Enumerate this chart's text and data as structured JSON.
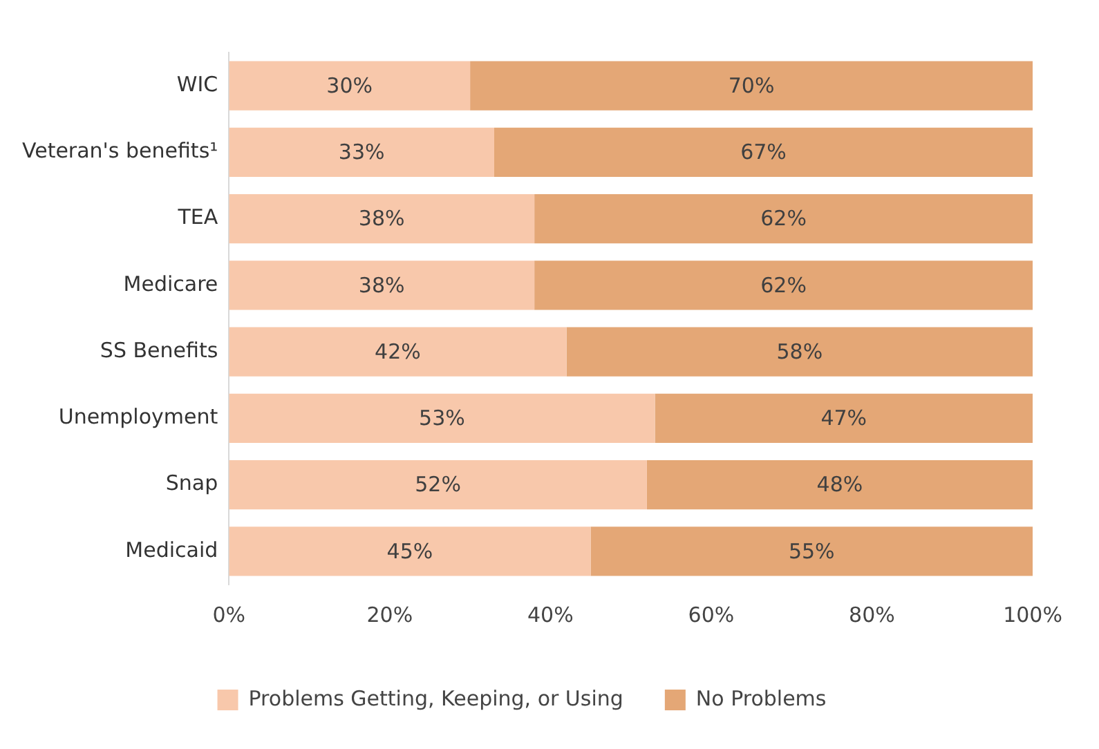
{
  "chart_data": {
    "type": "bar",
    "orientation": "horizontal",
    "stacked": true,
    "categories": [
      "WIC",
      "Veteran's benefits¹",
      "TEA",
      "Medicare",
      "SS Benefits",
      "Unemployment",
      "Snap",
      "Medicaid"
    ],
    "series": [
      {
        "name": "Problems Getting, Keeping, or Using",
        "color": "#f8c8ab",
        "values": [
          30,
          33,
          38,
          38,
          42,
          53,
          52,
          45
        ],
        "value_labels": [
          "30%",
          "33%",
          "38%",
          "38%",
          "42%",
          "53%",
          "52%",
          "45%"
        ]
      },
      {
        "name": "No Problems",
        "color": "#e4a776",
        "values": [
          70,
          67,
          62,
          62,
          58,
          47,
          48,
          55
        ],
        "value_labels": [
          "70%",
          "67%",
          "62%",
          "62%",
          "58%",
          "47%",
          "48%",
          "55%"
        ]
      }
    ],
    "xlim": [
      0,
      100
    ],
    "xticks": [
      {
        "value": 0,
        "label": "0%"
      },
      {
        "value": 20,
        "label": "20%"
      },
      {
        "value": 40,
        "label": "40%"
      },
      {
        "value": 60,
        "label": "60%"
      },
      {
        "value": 80,
        "label": "80%"
      },
      {
        "value": 100,
        "label": "100%"
      }
    ],
    "grid": false,
    "legend": "bottom"
  }
}
